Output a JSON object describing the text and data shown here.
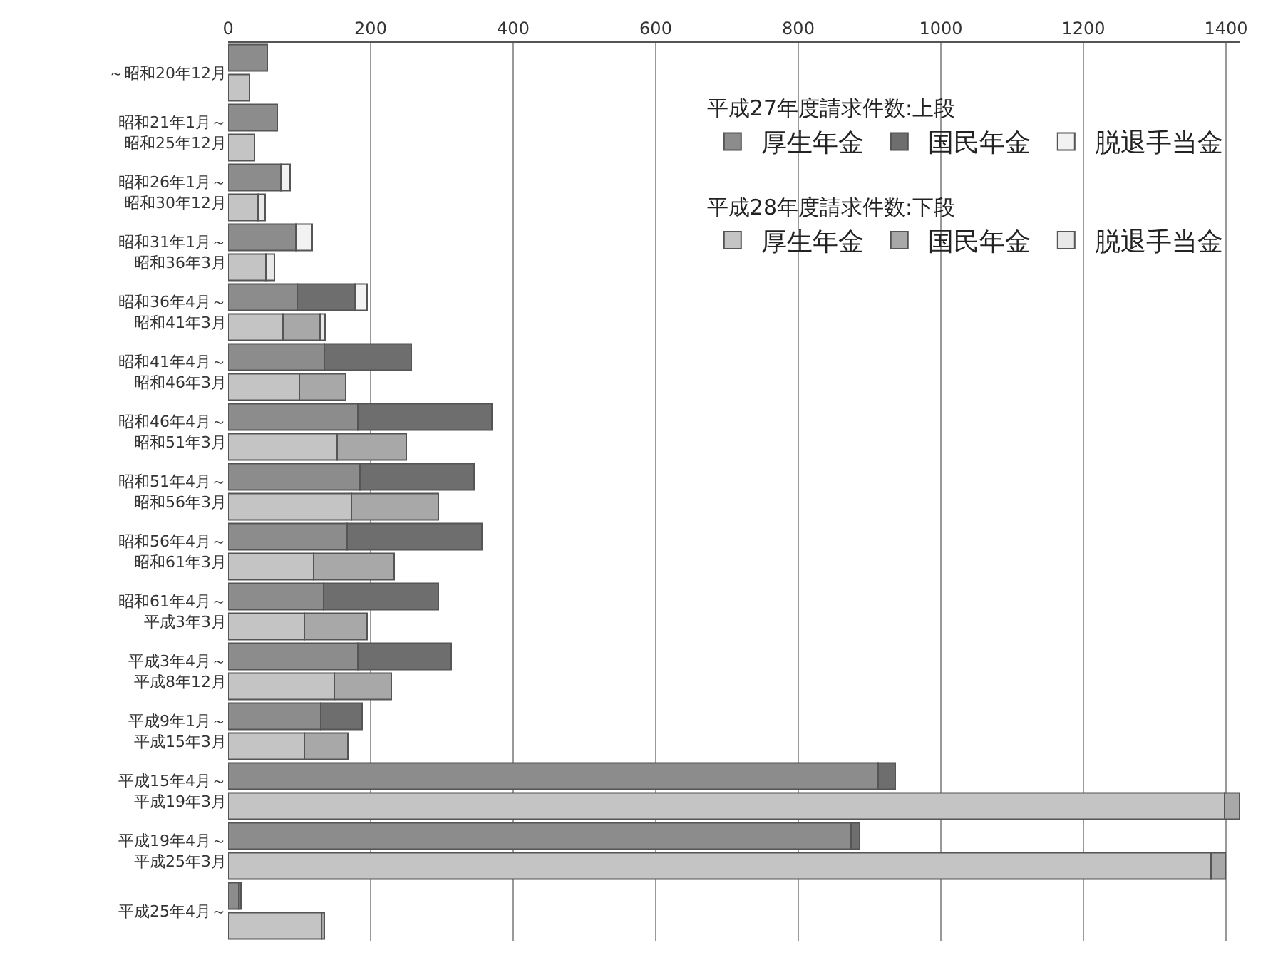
{
  "chart_data": {
    "type": "bar",
    "orientation": "horizontal",
    "stacked": true,
    "legend_title": [
      "平成27年度請求件数:上段",
      "平成28年度請求件数:下段"
    ],
    "categories": [
      "～昭和20年12月",
      null,
      "昭和21年1月～昭和25年12月",
      null,
      "昭和26年1月～昭和30年12月",
      null,
      "昭和31年1月～昭和36年3月",
      null,
      "昭和36年4月～昭和41年3月",
      null,
      "昭和41年4月～昭和46年3月",
      null,
      "昭和46年4月～昭和51年3月",
      null,
      "昭和51年4月～昭和56年3月",
      null,
      "昭和56年4月～昭和61年3月",
      null,
      "昭和61年4月～平成3年3月",
      null,
      "平成3年4月～平成8年12月",
      null,
      "平成9年1月～平成15年3月",
      null,
      "平成15年4月～平成19年3月",
      null,
      "平成19年4月～平成25年3月",
      null,
      "平成25年4月～",
      null
    ],
    "series": [
      {
        "name": "厚生年金",
        "color": "#8c8c8c",
        "values": [
          55,
          null,
          69,
          null,
          74,
          null,
          95,
          null,
          97,
          null,
          135,
          null,
          182,
          null,
          185,
          null,
          167,
          null,
          134,
          null,
          182,
          null,
          130,
          null,
          912,
          null,
          874,
          null,
          15,
          null
        ]
      },
      {
        "name": "国民年金",
        "color": "#6e6e6e",
        "values": [
          null,
          null,
          null,
          null,
          null,
          null,
          null,
          null,
          81,
          null,
          122,
          null,
          188,
          null,
          160,
          null,
          189,
          null,
          161,
          null,
          131,
          null,
          58,
          null,
          24,
          null,
          12,
          null,
          3,
          null
        ]
      },
      {
        "name": "脱退手当金",
        "color": "#f2f2f2",
        "values": [
          null,
          null,
          null,
          null,
          13,
          null,
          23,
          null,
          17,
          null,
          null,
          null,
          null,
          null,
          null,
          null,
          null,
          null,
          null,
          null,
          null,
          null,
          null,
          null,
          null,
          null,
          null,
          null,
          null,
          null
        ]
      },
      {
        "name": "厚生年金",
        "color": "#c4c4c4",
        "values": [
          null,
          30,
          null,
          37,
          null,
          42,
          null,
          53,
          null,
          77,
          null,
          100,
          null,
          153,
          null,
          173,
          null,
          120,
          null,
          107,
          null,
          149,
          null,
          107,
          null,
          1398,
          null,
          1379,
          null,
          131
        ]
      },
      {
        "name": "国民年金",
        "color": "#a8a8a8",
        "values": [
          null,
          null,
          null,
          null,
          null,
          null,
          null,
          null,
          null,
          52,
          null,
          65,
          null,
          97,
          null,
          122,
          null,
          113,
          null,
          88,
          null,
          80,
          null,
          61,
          null,
          21,
          null,
          20,
          null,
          4
        ]
      },
      {
        "name": "脱退手当金",
        "color": "#e8e8e8",
        "values": [
          null,
          null,
          null,
          null,
          null,
          10,
          null,
          12,
          null,
          7,
          null,
          null,
          null,
          null,
          null,
          null,
          null,
          null,
          null,
          null,
          null,
          null,
          null,
          null,
          null,
          null,
          null,
          null,
          null,
          null
        ]
      }
    ],
    "xlim": [
      0,
      1420
    ],
    "xticks": [
      0,
      200,
      400,
      600,
      800,
      1000,
      1200,
      1400
    ],
    "grid": "x",
    "legend": "top right"
  }
}
